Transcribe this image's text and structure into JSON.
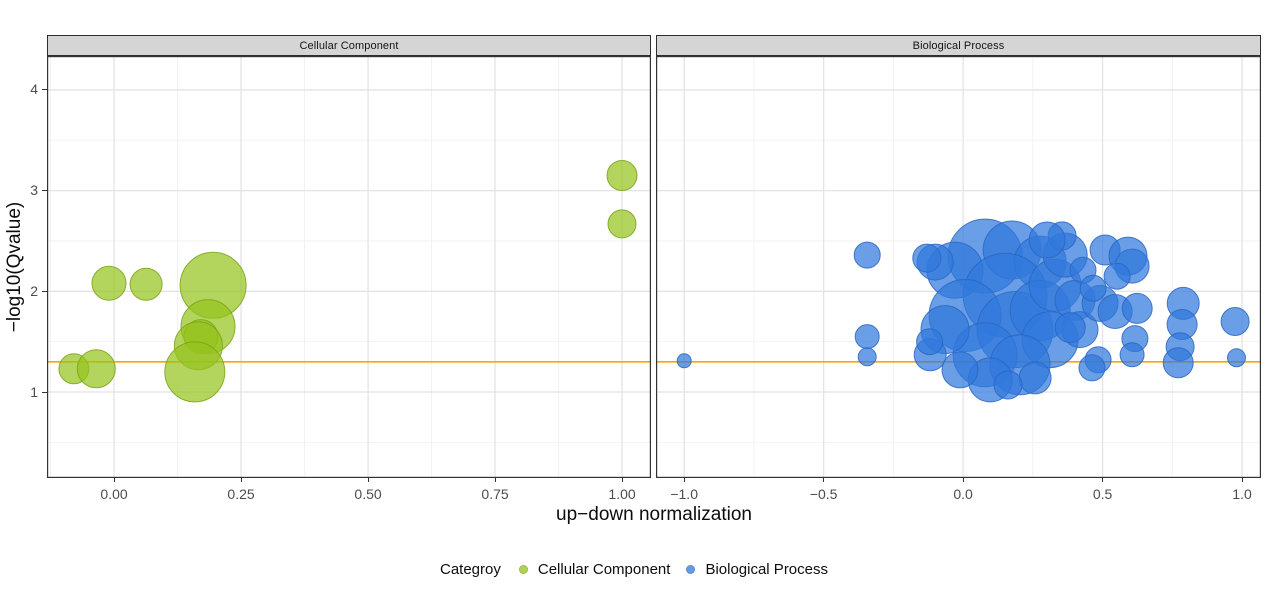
{
  "chart_data": {
    "type": "scatter",
    "subtype": "bubble-faceted",
    "xlabel": "up−down normalization",
    "ylabel": "−log10(Qvalue)",
    "grid": "on",
    "panel_background": "#ffffff",
    "strip_background": "#d5d5d5",
    "major_grid_color": "#e4e4e4",
    "minor_grid_color": "#f2f2f2",
    "border_color": "#333333",
    "threshold_line": {
      "y": 1.3,
      "color": "#FFA500"
    },
    "y_axis": {
      "ticks": [
        1,
        2,
        3,
        4
      ],
      "tick_labels": [
        "1",
        "2",
        "3",
        "4"
      ],
      "minor_ticks": [
        0.5,
        1.5,
        2.5,
        3.5
      ],
      "domain": [
        0.146,
        4.337
      ]
    },
    "legend": {
      "title": "Categroy",
      "position": "bottom",
      "items": [
        {
          "label": "Cellular Component",
          "fill": "#96C41F",
          "stroke": "#7AA319"
        },
        {
          "label": "Biological Process",
          "fill": "#3078DD",
          "stroke": "#2B66C2"
        }
      ]
    },
    "facets": [
      {
        "label": "Cellular Component",
        "fill": "#96C41F",
        "stroke": "#7AA319",
        "x_axis": {
          "ticks": [
            0,
            0.25,
            0.5,
            0.75,
            1
          ],
          "tick_labels": [
            "0.00",
            "0.25",
            "0.50",
            "0.75",
            "1.00"
          ],
          "minor_ticks": [
            -0.125,
            0.125,
            0.375,
            0.625,
            0.875
          ],
          "domain": [
            -0.132,
            1.057
          ]
        },
        "points": [
          [
            1.0,
            3.15,
            15
          ],
          [
            1.0,
            2.67,
            14
          ],
          [
            -0.01,
            2.08,
            17
          ],
          [
            0.063,
            2.07,
            16
          ],
          [
            0.195,
            2.06,
            33
          ],
          [
            0.185,
            1.65,
            27
          ],
          [
            0.171,
            1.55,
            17
          ],
          [
            0.166,
            1.46,
            24
          ],
          [
            0.159,
            1.2,
            30
          ],
          [
            -0.079,
            1.23,
            15
          ],
          [
            -0.035,
            1.23,
            19
          ]
        ]
      },
      {
        "label": "Biological Process",
        "fill": "#3078DD",
        "stroke": "#2B66C2",
        "x_axis": {
          "ticks": [
            -1,
            -0.5,
            0,
            0.5,
            1
          ],
          "tick_labels": [
            "−1.0",
            "−0.5",
            "0.0",
            "0.5",
            "1.0"
          ],
          "minor_ticks": [
            -0.75,
            -0.25,
            0.25,
            0.75
          ],
          "domain": [
            -1.101,
            1.068
          ]
        },
        "points": [
          [
            -1.0,
            1.31,
            7
          ],
          [
            -0.344,
            2.36,
            13
          ],
          [
            -0.344,
            1.55,
            12
          ],
          [
            -0.344,
            1.35,
            9
          ],
          [
            0.079,
            2.35,
            37
          ],
          [
            0.176,
            2.41,
            29
          ],
          [
            0.276,
            2.29,
            26
          ],
          [
            -0.029,
            2.21,
            28
          ],
          [
            -0.1,
            2.29,
            18
          ],
          [
            -0.13,
            2.33,
            14
          ],
          [
            0.151,
            1.96,
            42
          ],
          [
            0.007,
            1.76,
            36
          ],
          [
            0.186,
            1.62,
            38
          ],
          [
            0.079,
            1.37,
            32
          ],
          [
            -0.065,
            1.62,
            24
          ],
          [
            -0.118,
            1.37,
            16
          ],
          [
            -0.12,
            1.5,
            13
          ],
          [
            0.276,
            1.81,
            30
          ],
          [
            0.33,
            2.06,
            26
          ],
          [
            0.366,
            2.36,
            22
          ],
          [
            0.312,
            1.52,
            28
          ],
          [
            0.204,
            1.27,
            30
          ],
          [
            0.097,
            1.12,
            22
          ],
          [
            -0.011,
            1.22,
            18
          ],
          [
            0.401,
            1.91,
            20
          ],
          [
            0.419,
            1.62,
            18
          ],
          [
            0.258,
            1.14,
            16
          ],
          [
            0.161,
            1.07,
            14
          ],
          [
            0.355,
            2.55,
            14
          ],
          [
            0.301,
            2.51,
            18
          ],
          [
            0.43,
            2.21,
            13
          ],
          [
            0.509,
            2.41,
            15
          ],
          [
            0.591,
            2.35,
            19
          ],
          [
            0.606,
            2.25,
            17
          ],
          [
            0.552,
            2.15,
            13
          ],
          [
            0.491,
            1.88,
            18
          ],
          [
            0.545,
            1.8,
            17
          ],
          [
            0.624,
            1.83,
            15
          ],
          [
            0.616,
            1.53,
            13
          ],
          [
            0.606,
            1.37,
            12
          ],
          [
            0.484,
            1.32,
            13
          ],
          [
            0.462,
            1.24,
            13
          ],
          [
            0.384,
            1.64,
            15
          ],
          [
            0.466,
            2.03,
            13
          ],
          [
            0.789,
            1.88,
            16
          ],
          [
            0.785,
            1.67,
            15
          ],
          [
            0.778,
            1.45,
            14
          ],
          [
            0.771,
            1.29,
            15
          ],
          [
            0.975,
            1.7,
            14
          ],
          [
            0.98,
            1.34,
            9
          ]
        ]
      }
    ]
  }
}
